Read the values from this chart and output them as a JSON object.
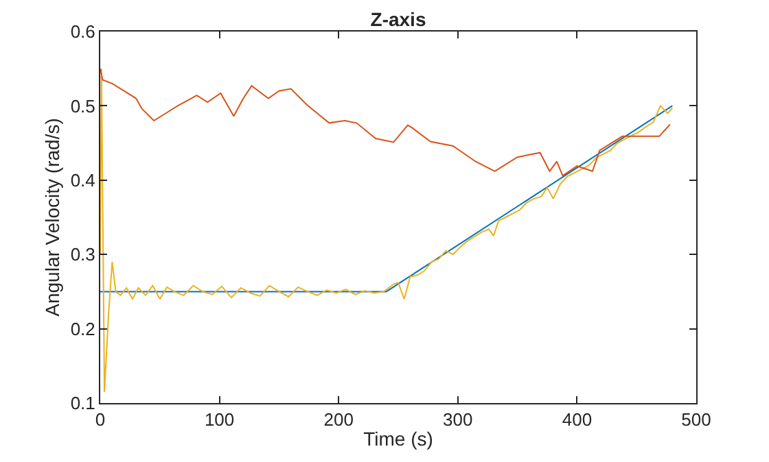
{
  "chart_data": {
    "type": "line",
    "title": "Z-axis",
    "xlabel": "Time (s)",
    "ylabel": "Angular Velocity (rad/s)",
    "xlim": [
      0,
      500
    ],
    "ylim": [
      0.1,
      0.6
    ],
    "xticks": [
      0,
      100,
      200,
      300,
      400,
      500
    ],
    "yticks": [
      {
        "value": 0.1,
        "label": "0.1"
      },
      {
        "value": 0.2,
        "label": "0.2"
      },
      {
        "value": 0.3,
        "label": "0.3"
      },
      {
        "value": 0.4,
        "label": "0.4"
      },
      {
        "value": 0.5,
        "label": "0.5"
      },
      {
        "value": 0.6,
        "label": "0.6"
      }
    ],
    "marker": "none",
    "line_style": "solid",
    "series": [
      {
        "color": "#0072bd",
        "x": [
          0,
          240,
          480
        ],
        "values": [
          0.25,
          0.25,
          0.5
        ]
      },
      {
        "color": "#edb120",
        "x": [
          0,
          1,
          3.5,
          7,
          10,
          13,
          17,
          22,
          27,
          32,
          38,
          44,
          50,
          56,
          62,
          70,
          78,
          86,
          94,
          102,
          110,
          118,
          126,
          134,
          142,
          150,
          158,
          166,
          174,
          182,
          190,
          198,
          206,
          214,
          222,
          230,
          238,
          242,
          246,
          250,
          255,
          260,
          266,
          272,
          278,
          284,
          290,
          296,
          302,
          308,
          314,
          320,
          326,
          330,
          334,
          340,
          346,
          352,
          358,
          364,
          370,
          375,
          380,
          386,
          392,
          398,
          404,
          410,
          416,
          422,
          428,
          434,
          440,
          446,
          452,
          458,
          464,
          470,
          476,
          480
        ],
        "values": [
          0.3,
          0.55,
          0.115,
          0.22,
          0.29,
          0.25,
          0.245,
          0.255,
          0.24,
          0.255,
          0.245,
          0.258,
          0.24,
          0.256,
          0.25,
          0.245,
          0.258,
          0.25,
          0.246,
          0.257,
          0.242,
          0.255,
          0.248,
          0.244,
          0.258,
          0.25,
          0.243,
          0.256,
          0.25,
          0.245,
          0.252,
          0.248,
          0.253,
          0.246,
          0.251,
          0.248,
          0.25,
          0.255,
          0.26,
          0.262,
          0.24,
          0.27,
          0.272,
          0.278,
          0.29,
          0.294,
          0.305,
          0.3,
          0.31,
          0.318,
          0.324,
          0.33,
          0.334,
          0.325,
          0.345,
          0.35,
          0.355,
          0.36,
          0.37,
          0.375,
          0.378,
          0.39,
          0.375,
          0.395,
          0.405,
          0.41,
          0.415,
          0.42,
          0.43,
          0.435,
          0.44,
          0.45,
          0.455,
          0.46,
          0.465,
          0.472,
          0.478,
          0.5,
          0.49,
          0.497
        ]
      },
      {
        "color": "#d95319",
        "x": [
          0,
          2,
          10,
          20,
          30,
          35,
          45,
          55,
          65,
          81,
          90,
          101,
          112,
          120,
          127,
          141,
          150,
          160,
          173,
          182,
          192,
          205,
          215,
          231,
          246,
          258,
          262,
          277,
          296,
          315,
          331,
          350,
          369,
          377,
          383,
          388,
          400,
          413,
          419,
          438,
          453,
          469,
          478
        ],
        "values": [
          0.55,
          0.535,
          0.53,
          0.52,
          0.51,
          0.496,
          0.48,
          0.49,
          0.5,
          0.514,
          0.505,
          0.517,
          0.486,
          0.51,
          0.527,
          0.51,
          0.52,
          0.523,
          0.502,
          0.49,
          0.477,
          0.48,
          0.477,
          0.456,
          0.451,
          0.474,
          0.47,
          0.452,
          0.446,
          0.425,
          0.412,
          0.431,
          0.437,
          0.412,
          0.425,
          0.406,
          0.419,
          0.412,
          0.44,
          0.459,
          0.459,
          0.459,
          0.475
        ]
      }
    ]
  }
}
